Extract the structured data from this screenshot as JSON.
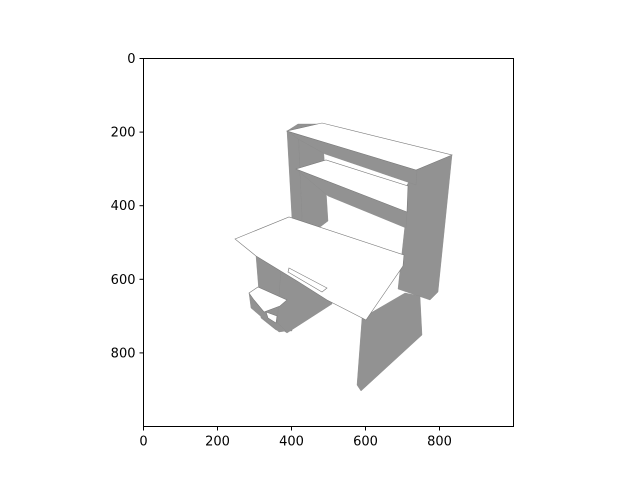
{
  "chart_data": {
    "type": "image",
    "title": "",
    "xlabel": "",
    "ylabel": "",
    "xlim": [
      0,
      1000
    ],
    "ylim": [
      1000,
      0
    ],
    "y_inverted": true,
    "x_ticks": [
      0,
      200,
      400,
      600,
      800
    ],
    "y_ticks": [
      0,
      200,
      400,
      600,
      800
    ],
    "grid": false,
    "image": {
      "subject": "rendered 3D model of a computer desk with hutch shelves",
      "colors": {
        "light_face": "#ffffff",
        "dark_face": "#929292",
        "edge": "#7a7a7a"
      }
    }
  }
}
